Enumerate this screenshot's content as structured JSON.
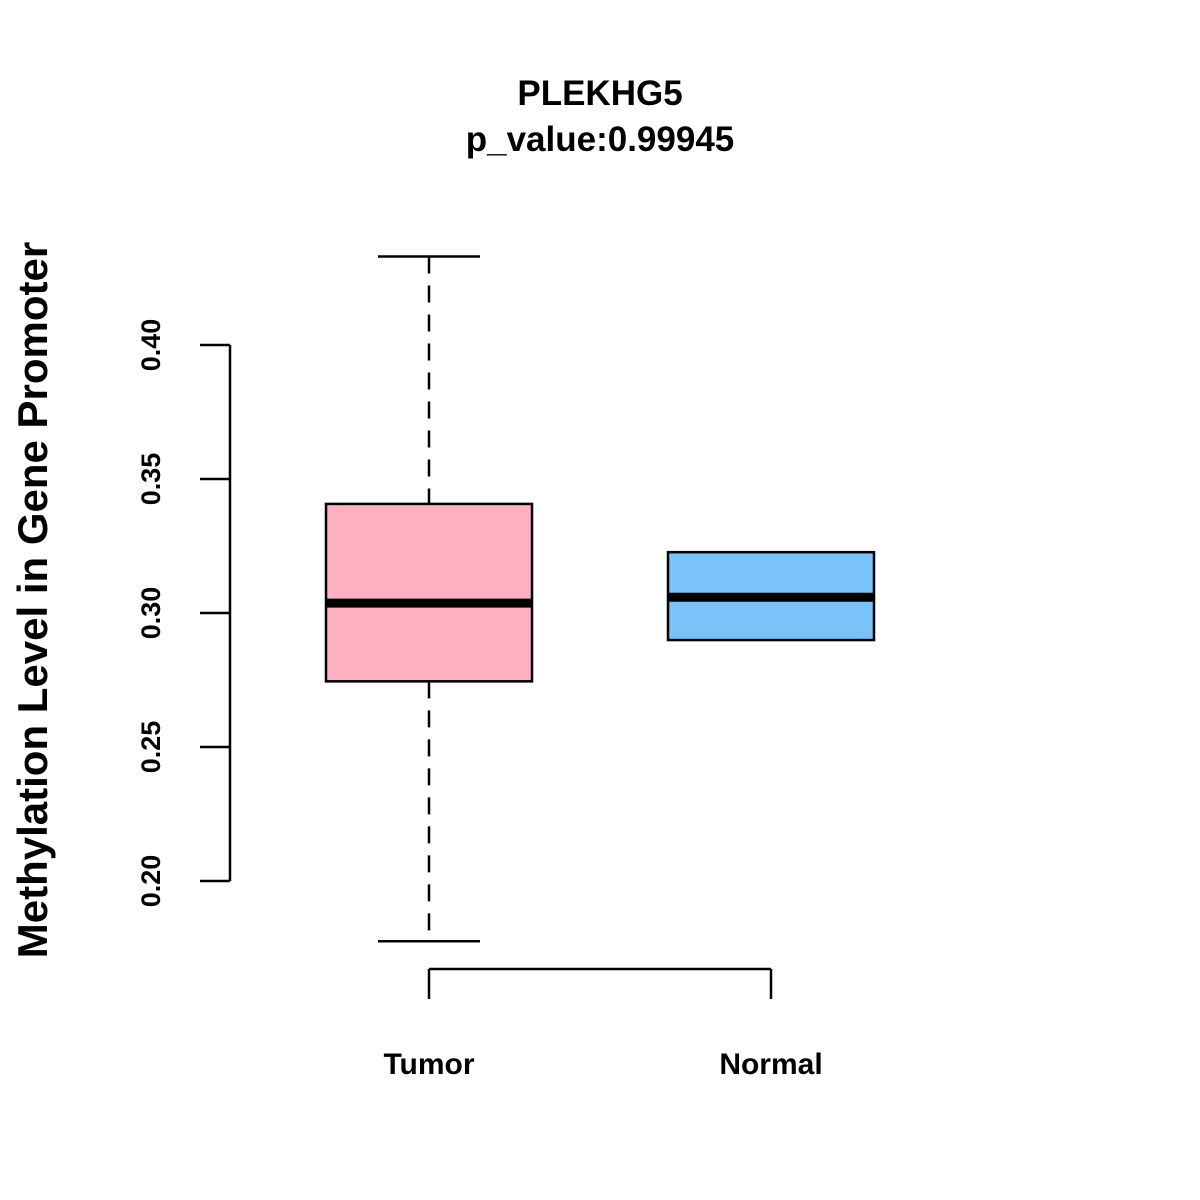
{
  "chart_data": {
    "type": "box",
    "title": "PLEKHG5",
    "subtitle": "p_value:0.99945",
    "xlabel": "",
    "ylabel": "Methylation Level in Gene Promoter",
    "ylim": [
      0.2,
      0.4
    ],
    "y_ticks": [
      {
        "value": 0.2,
        "label": "0.20"
      },
      {
        "value": 0.25,
        "label": "0.25"
      },
      {
        "value": 0.3,
        "label": "0.30"
      },
      {
        "value": 0.35,
        "label": "0.35"
      },
      {
        "value": 0.4,
        "label": "0.40"
      }
    ],
    "categories": [
      "Tumor",
      "Normal"
    ],
    "series": [
      {
        "name": "Tumor",
        "whisker_low": 0.1775,
        "q1": 0.2745,
        "median": 0.3037,
        "q3": 0.3407,
        "whisker_high": 0.433,
        "color": "#FDB1C3"
      },
      {
        "name": "Normal",
        "whisker_low": 0.2899,
        "q1": 0.2899,
        "median": 0.3059,
        "q3": 0.3227,
        "whisker_high": 0.3227,
        "color": "#7AC2F8"
      }
    ]
  }
}
